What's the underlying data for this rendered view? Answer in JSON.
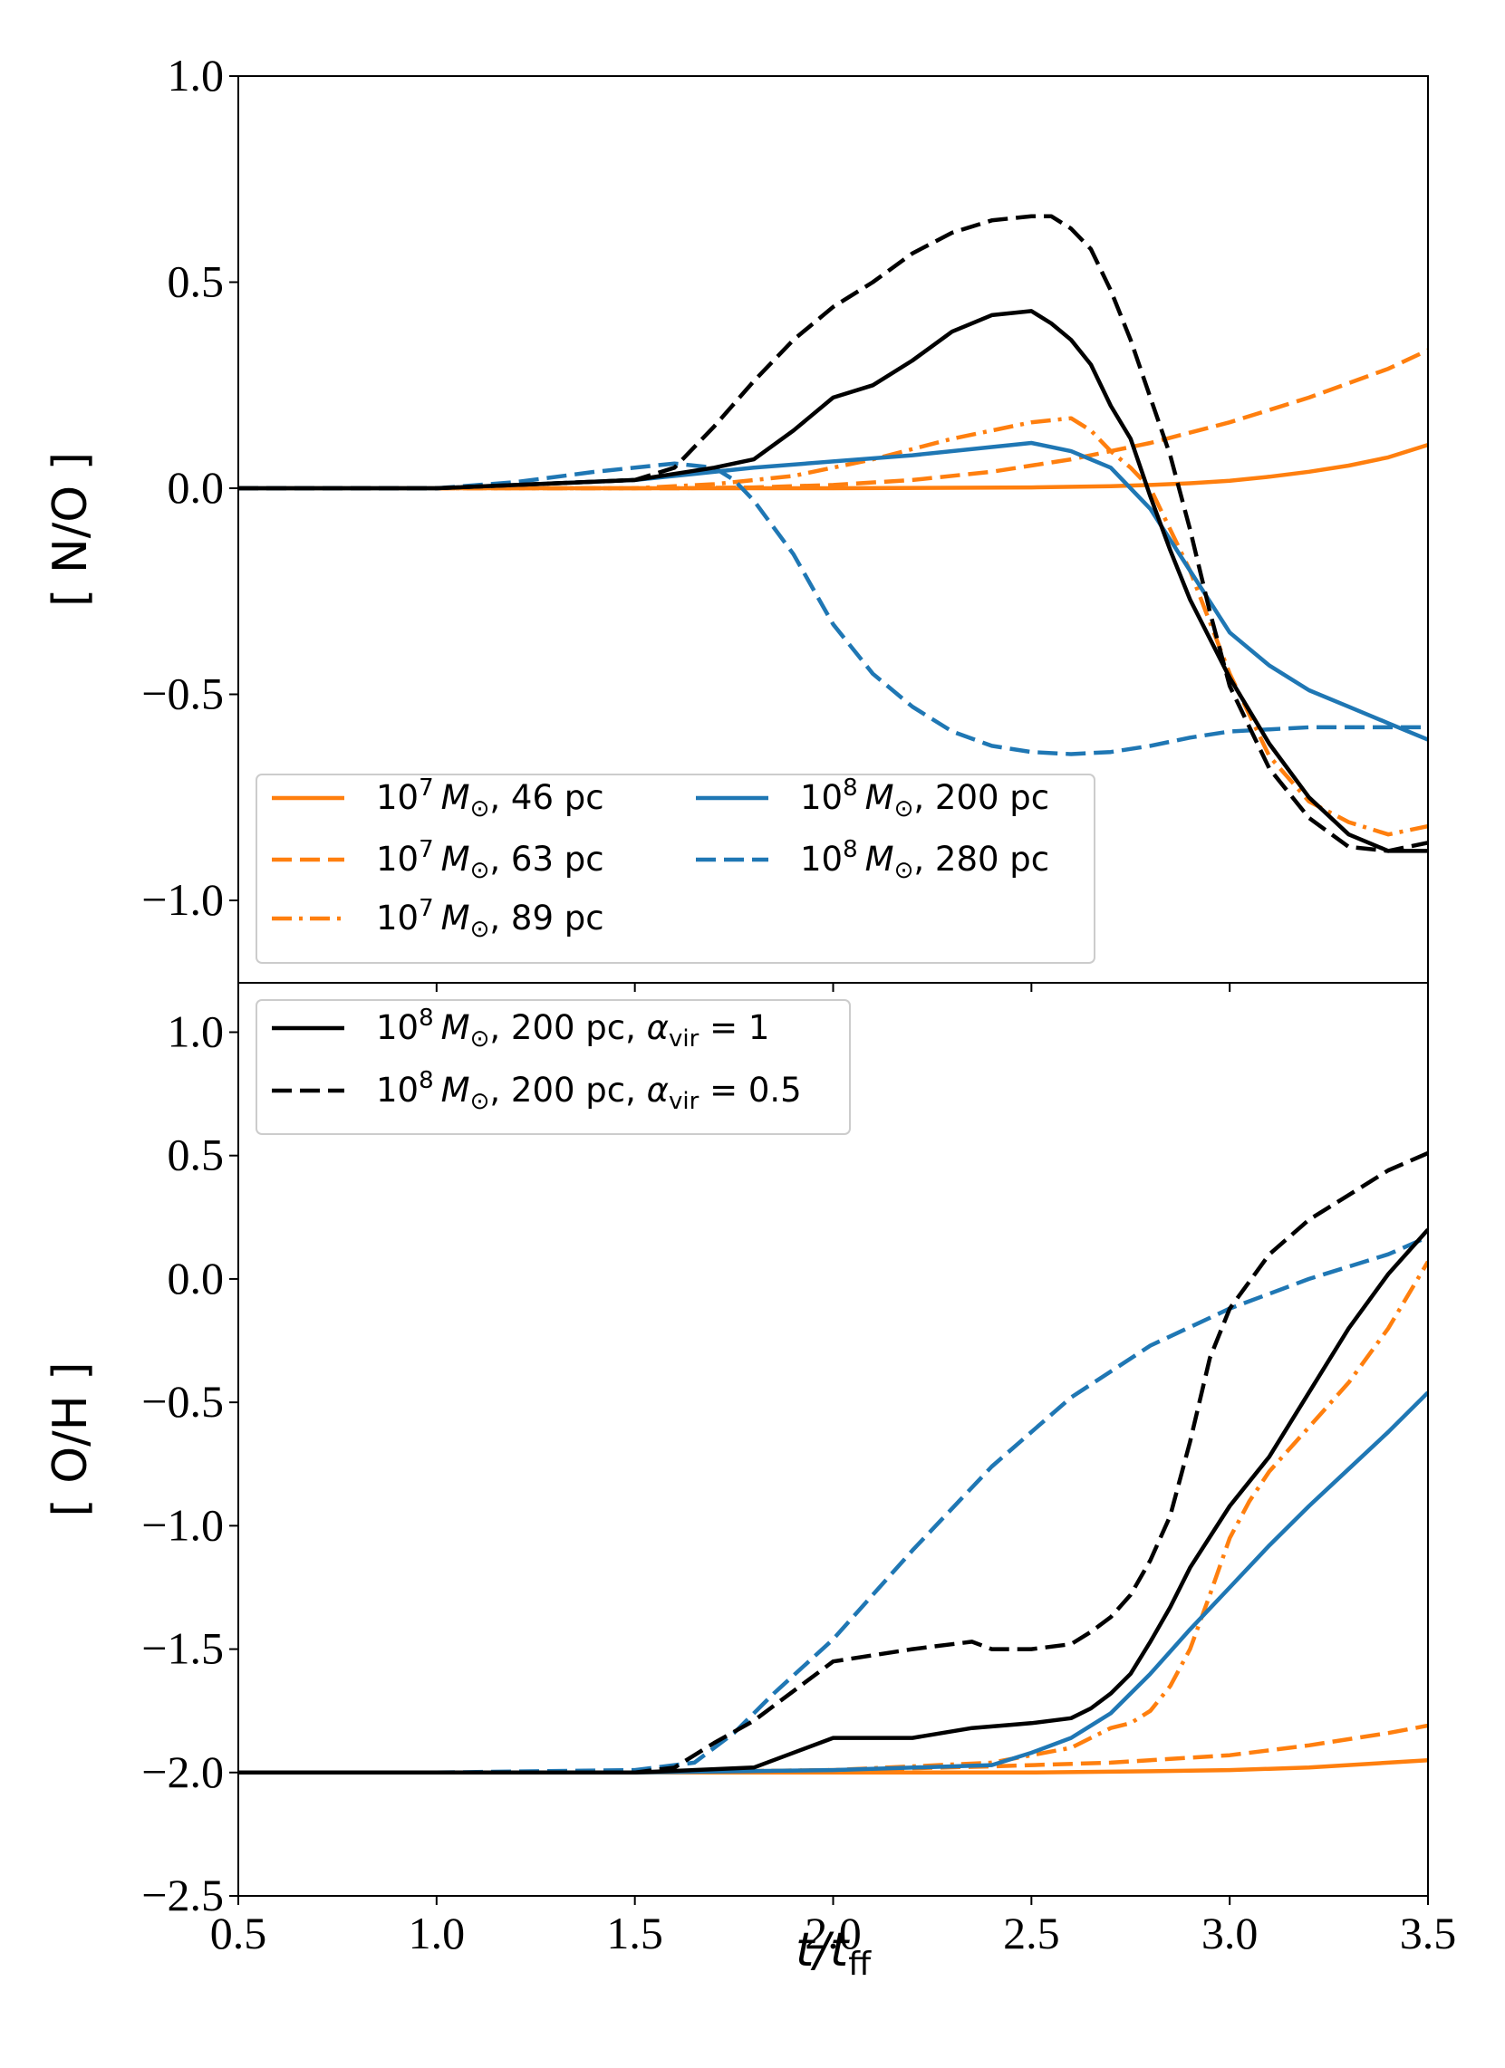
{
  "chart_data": [
    {
      "type": "line",
      "ylabel": "[ N/O ]",
      "xlabel": "",
      "xlim": [
        0.5,
        3.5
      ],
      "ylim": [
        -1.2,
        1.0
      ],
      "yticks": [
        1.0,
        0.5,
        0.0,
        -0.5,
        -1.0
      ],
      "ytick_labels": [
        "1.0",
        "0.5",
        "0.0",
        "−0.5",
        "−1.0"
      ],
      "legend": {
        "location": "lower-left",
        "columns": 2,
        "entries": [
          {
            "series": "no_1e7_46",
            "text": "10",
            "sup": "7",
            "rest": "M",
            "sub": "⊙",
            "tail": ", 46 pc"
          },
          {
            "series": "no_1e7_63",
            "text": "10",
            "sup": "7",
            "rest": "M",
            "sub": "⊙",
            "tail": ", 63 pc"
          },
          {
            "series": "no_1e7_89",
            "text": "10",
            "sup": "7",
            "rest": "M",
            "sub": "⊙",
            "tail": ", 89 pc"
          },
          {
            "series": "no_1e8_200",
            "text": "10",
            "sup": "8",
            "rest": "M",
            "sub": "⊙",
            "tail": ", 200 pc"
          },
          {
            "series": "no_1e8_280",
            "text": "10",
            "sup": "8",
            "rest": "M",
            "sub": "⊙",
            "tail": ", 280 pc"
          }
        ]
      },
      "series": [
        {
          "id": "no_1e7_46",
          "name": "10^7 Msun, 46 pc",
          "color": "#ff7f0e",
          "style": "solid",
          "x": [
            0.5,
            1.0,
            1.5,
            2.0,
            2.5,
            2.7,
            2.8,
            2.9,
            3.0,
            3.1,
            3.2,
            3.3,
            3.4,
            3.5
          ],
          "y": [
            0.0,
            0.0,
            0.0,
            0.0,
            0.002,
            0.005,
            0.008,
            0.012,
            0.018,
            0.028,
            0.04,
            0.055,
            0.075,
            0.105
          ]
        },
        {
          "id": "no_1e7_63",
          "name": "10^7 Msun, 63 pc",
          "color": "#ff7f0e",
          "style": "dashed",
          "x": [
            0.5,
            1.0,
            1.6,
            1.8,
            2.0,
            2.2,
            2.4,
            2.6,
            2.8,
            3.0,
            3.2,
            3.4,
            3.5
          ],
          "y": [
            0.0,
            0.0,
            0.0,
            0.002,
            0.008,
            0.02,
            0.04,
            0.07,
            0.11,
            0.16,
            0.22,
            0.29,
            0.335
          ]
        },
        {
          "id": "no_1e7_89",
          "name": "10^7 Msun, 89 pc",
          "color": "#ff7f0e",
          "style": "dashdot",
          "x": [
            0.5,
            1.5,
            1.7,
            1.9,
            2.1,
            2.3,
            2.5,
            2.6,
            2.65,
            2.7,
            2.75,
            2.8,
            2.9,
            3.0,
            3.1,
            3.2,
            3.3,
            3.4,
            3.5
          ],
          "y": [
            0.0,
            0.0,
            0.01,
            0.03,
            0.07,
            0.12,
            0.16,
            0.17,
            0.14,
            0.09,
            0.05,
            0.0,
            -0.2,
            -0.45,
            -0.65,
            -0.76,
            -0.81,
            -0.84,
            -0.82
          ]
        },
        {
          "id": "no_1e8_200",
          "name": "10^8 Msun, 200 pc",
          "color": "#1f77b4",
          "style": "solid",
          "x": [
            0.5,
            1.0,
            1.5,
            1.8,
            2.0,
            2.2,
            2.4,
            2.5,
            2.6,
            2.7,
            2.8,
            2.9,
            3.0,
            3.1,
            3.2,
            3.3,
            3.4,
            3.5
          ],
          "y": [
            0.0,
            0.0,
            0.02,
            0.05,
            0.065,
            0.08,
            0.1,
            0.11,
            0.09,
            0.05,
            -0.05,
            -0.2,
            -0.35,
            -0.43,
            -0.49,
            -0.53,
            -0.57,
            -0.61
          ]
        },
        {
          "id": "no_1e8_280",
          "name": "10^8 Msun, 280 pc",
          "color": "#1f77b4",
          "style": "dashed",
          "x": [
            0.5,
            1.0,
            1.2,
            1.4,
            1.6,
            1.7,
            1.75,
            1.8,
            1.9,
            2.0,
            2.1,
            2.2,
            2.3,
            2.4,
            2.5,
            2.6,
            2.7,
            2.8,
            2.9,
            3.0,
            3.1,
            3.2,
            3.3,
            3.4,
            3.5
          ],
          "y": [
            0.0,
            0.0,
            0.015,
            0.04,
            0.06,
            0.05,
            0.02,
            -0.03,
            -0.16,
            -0.33,
            -0.45,
            -0.53,
            -0.59,
            -0.625,
            -0.64,
            -0.645,
            -0.64,
            -0.625,
            -0.605,
            -0.59,
            -0.585,
            -0.58,
            -0.58,
            -0.58,
            -0.58
          ]
        },
        {
          "id": "no_a1",
          "name": "10^8 Msun, 200 pc, alpha_vir = 1",
          "color": "#000000",
          "style": "solid",
          "x": [
            0.5,
            1.0,
            1.5,
            1.7,
            1.8,
            1.9,
            2.0,
            2.1,
            2.2,
            2.3,
            2.4,
            2.5,
            2.55,
            2.6,
            2.65,
            2.7,
            2.75,
            2.8,
            2.85,
            2.9,
            3.0,
            3.1,
            3.2,
            3.3,
            3.4,
            3.5
          ],
          "y": [
            0.0,
            0.0,
            0.02,
            0.05,
            0.07,
            0.14,
            0.22,
            0.25,
            0.31,
            0.38,
            0.42,
            0.43,
            0.4,
            0.36,
            0.3,
            0.2,
            0.12,
            -0.02,
            -0.15,
            -0.27,
            -0.46,
            -0.62,
            -0.75,
            -0.84,
            -0.88,
            -0.88
          ]
        },
        {
          "id": "no_a05",
          "name": "10^8 Msun, 200 pc, alpha_vir = 0.5",
          "color": "#000000",
          "style": "dashed",
          "x": [
            0.5,
            1.0,
            1.5,
            1.6,
            1.7,
            1.8,
            1.9,
            2.0,
            2.1,
            2.2,
            2.3,
            2.4,
            2.5,
            2.55,
            2.6,
            2.65,
            2.7,
            2.75,
            2.8,
            2.85,
            2.9,
            2.95,
            3.0,
            3.1,
            3.2,
            3.3,
            3.4,
            3.5
          ],
          "y": [
            0.0,
            0.0,
            0.02,
            0.05,
            0.15,
            0.26,
            0.36,
            0.44,
            0.5,
            0.57,
            0.62,
            0.65,
            0.66,
            0.66,
            0.63,
            0.58,
            0.48,
            0.36,
            0.22,
            0.08,
            -0.1,
            -0.3,
            -0.48,
            -0.68,
            -0.8,
            -0.87,
            -0.88,
            -0.86
          ]
        }
      ]
    },
    {
      "type": "line",
      "ylabel": "[ O/H ]",
      "xlabel": "t/t",
      "xlabel_sub": "ff",
      "xlim": [
        0.5,
        3.5
      ],
      "ylim": [
        -2.5,
        1.2
      ],
      "xticks": [
        0.5,
        1.0,
        1.5,
        2.0,
        2.5,
        3.0,
        3.5
      ],
      "xtick_labels": [
        "0.5",
        "1.0",
        "1.5",
        "2.0",
        "2.5",
        "3.0",
        "3.5"
      ],
      "yticks": [
        1.0,
        0.5,
        0.0,
        -0.5,
        -1.0,
        -1.5,
        -2.0,
        -2.5
      ],
      "ytick_labels": [
        "1.0",
        "0.5",
        "0.0",
        "−0.5",
        "−1.0",
        "−1.5",
        "−2.0",
        "−2.5"
      ],
      "legend": {
        "location": "top-left",
        "columns": 1,
        "entries": [
          {
            "series": "oh_a1",
            "text": "10",
            "sup": "8",
            "rest": "M",
            "sub": "⊙",
            "tail": ", 200 pc, ",
            "greek": "α",
            "greek_sub": "vir",
            "eq": " = 1"
          },
          {
            "series": "oh_a05",
            "text": "10",
            "sup": "8",
            "rest": "M",
            "sub": "⊙",
            "tail": ", 200 pc, ",
            "greek": "α",
            "greek_sub": "vir",
            "eq": " = 0.5"
          }
        ]
      },
      "series": [
        {
          "id": "oh_1e7_46",
          "name": "10^7 Msun, 46 pc",
          "color": "#ff7f0e",
          "style": "solid",
          "x": [
            0.5,
            1.0,
            2.0,
            2.5,
            2.8,
            3.0,
            3.2,
            3.4,
            3.5
          ],
          "y": [
            -2.0,
            -2.0,
            -2.0,
            -2.0,
            -1.995,
            -1.99,
            -1.98,
            -1.96,
            -1.95
          ]
        },
        {
          "id": "oh_1e7_63",
          "name": "10^7 Msun, 63 pc",
          "color": "#ff7f0e",
          "style": "dashed",
          "x": [
            0.5,
            1.5,
            2.0,
            2.4,
            2.7,
            3.0,
            3.2,
            3.4,
            3.5
          ],
          "y": [
            -2.0,
            -2.0,
            -1.99,
            -1.975,
            -1.96,
            -1.93,
            -1.89,
            -1.84,
            -1.81
          ]
        },
        {
          "id": "oh_1e7_89",
          "name": "10^7 Msun, 89 pc",
          "color": "#ff7f0e",
          "style": "dashdot",
          "x": [
            0.5,
            1.5,
            2.0,
            2.4,
            2.6,
            2.7,
            2.75,
            2.8,
            2.85,
            2.9,
            2.95,
            3.0,
            3.05,
            3.1,
            3.2,
            3.3,
            3.4,
            3.5
          ],
          "y": [
            -2.0,
            -2.0,
            -1.99,
            -1.96,
            -1.9,
            -1.82,
            -1.8,
            -1.75,
            -1.65,
            -1.5,
            -1.28,
            -1.05,
            -0.9,
            -0.78,
            -0.6,
            -0.42,
            -0.2,
            0.07
          ]
        },
        {
          "id": "oh_1e8_200",
          "name": "10^8 Msun, 200 pc",
          "color": "#1f77b4",
          "style": "solid",
          "x": [
            0.5,
            1.5,
            2.0,
            2.4,
            2.5,
            2.6,
            2.7,
            2.8,
            2.9,
            3.0,
            3.1,
            3.2,
            3.3,
            3.4,
            3.5
          ],
          "y": [
            -2.0,
            -2.0,
            -1.99,
            -1.97,
            -1.92,
            -1.86,
            -1.76,
            -1.6,
            -1.42,
            -1.25,
            -1.08,
            -0.92,
            -0.77,
            -0.62,
            -0.46
          ]
        },
        {
          "id": "oh_1e8_280",
          "name": "10^8 Msun, 280 pc",
          "color": "#1f77b4",
          "style": "dashed",
          "x": [
            0.5,
            1.0,
            1.5,
            1.65,
            1.75,
            1.85,
            2.0,
            2.2,
            2.4,
            2.6,
            2.8,
            3.0,
            3.2,
            3.4,
            3.5
          ],
          "y": [
            -2.0,
            -2.0,
            -1.99,
            -1.96,
            -1.84,
            -1.68,
            -1.46,
            -1.1,
            -0.76,
            -0.48,
            -0.27,
            -0.12,
            0.0,
            0.1,
            0.17
          ]
        },
        {
          "id": "oh_a1",
          "name": "10^8 Msun, 200 pc, alpha_vir = 1",
          "color": "#000000",
          "style": "solid",
          "x": [
            0.5,
            1.5,
            1.8,
            2.0,
            2.1,
            2.2,
            2.35,
            2.5,
            2.6,
            2.65,
            2.7,
            2.75,
            2.8,
            2.85,
            2.9,
            3.0,
            3.1,
            3.2,
            3.3,
            3.4,
            3.5
          ],
          "y": [
            -2.0,
            -2.0,
            -1.98,
            -1.86,
            -1.86,
            -1.86,
            -1.82,
            -1.8,
            -1.78,
            -1.74,
            -1.68,
            -1.6,
            -1.47,
            -1.33,
            -1.17,
            -0.92,
            -0.72,
            -0.46,
            -0.2,
            0.02,
            0.2
          ]
        },
        {
          "id": "oh_a05",
          "name": "10^8 Msun, 200 pc, alpha_vir = 0.5",
          "color": "#000000",
          "style": "dashed",
          "x": [
            0.5,
            1.5,
            1.6,
            1.7,
            1.8,
            1.9,
            2.0,
            2.2,
            2.35,
            2.4,
            2.5,
            2.6,
            2.65,
            2.7,
            2.75,
            2.8,
            2.85,
            2.9,
            2.95,
            3.0,
            3.1,
            3.2,
            3.3,
            3.4,
            3.5
          ],
          "y": [
            -2.0,
            -2.0,
            -1.98,
            -1.88,
            -1.79,
            -1.67,
            -1.55,
            -1.5,
            -1.47,
            -1.5,
            -1.5,
            -1.48,
            -1.43,
            -1.37,
            -1.28,
            -1.14,
            -0.96,
            -0.66,
            -0.32,
            -0.12,
            0.1,
            0.24,
            0.34,
            0.44,
            0.51
          ]
        }
      ]
    }
  ]
}
